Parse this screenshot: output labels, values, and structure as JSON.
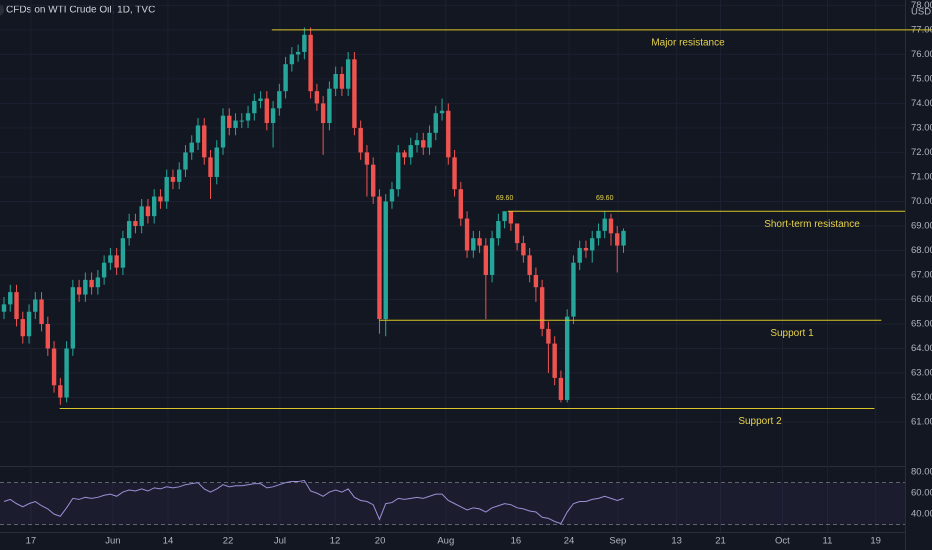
{
  "chart_data": {
    "type": "candlestick",
    "title": "CFDs on WTI Crude Oil, 1D, TVC",
    "y_unit": "USD",
    "up_color": "#26a69a",
    "down_color": "#ef5350",
    "level_color": "#d9c527",
    "open": [
      65.5,
      65.8,
      66.3,
      65.2,
      64.5,
      65.5,
      66.0,
      65.0,
      64.0,
      62.5,
      62.0,
      64.0,
      66.5,
      66.2,
      66.8,
      66.5,
      66.9,
      67.5,
      67.8,
      67.3,
      68.5,
      69.2,
      69.0,
      69.8,
      69.4,
      70.2,
      70.0,
      71.0,
      70.8,
      71.3,
      72.0,
      72.4,
      73.1,
      71.8,
      71.0,
      72.2,
      73.5,
      73.0,
      73.3,
      73.3,
      73.6,
      74.1,
      74.2,
      73.2,
      73.8,
      74.5,
      75.6,
      76.0,
      76.1,
      76.8,
      74.5,
      74.0,
      73.2,
      74.6,
      75.2,
      74.6,
      75.8,
      73.0,
      72.0,
      71.5,
      70.2,
      65.2,
      70.0,
      70.5,
      72.0,
      71.8,
      72.3,
      72.5,
      72.2,
      72.8,
      73.6,
      73.7,
      71.8,
      70.5,
      69.3,
      68.0,
      68.5,
      68.2,
      67.0,
      68.5,
      69.2,
      69.6,
      69.1,
      68.3,
      67.8,
      67.0,
      66.5,
      64.8,
      64.2,
      62.8,
      61.9,
      65.3,
      67.5,
      68.1,
      68.0,
      68.5,
      68.8,
      69.3,
      68.7,
      68.2
    ],
    "high": [
      66.1,
      66.6,
      66.6,
      65.5,
      65.8,
      66.3,
      66.3,
      65.3,
      64.3,
      62.8,
      64.3,
      66.8,
      66.8,
      67.1,
      67.1,
      67.2,
      67.8,
      68.1,
      68.1,
      68.8,
      69.5,
      69.5,
      70.1,
      70.1,
      70.5,
      70.5,
      71.3,
      71.3,
      71.6,
      72.3,
      72.7,
      73.4,
      73.4,
      72.1,
      72.5,
      73.8,
      73.8,
      73.6,
      73.6,
      73.9,
      74.4,
      74.5,
      74.5,
      74.1,
      74.8,
      75.9,
      76.3,
      76.4,
      77.1,
      77.1,
      74.8,
      74.3,
      74.9,
      75.5,
      75.5,
      76.1,
      76.1,
      73.3,
      72.3,
      71.8,
      70.5,
      70.3,
      70.8,
      72.3,
      72.1,
      72.6,
      72.8,
      72.8,
      73.1,
      73.9,
      74.2,
      74.0,
      72.1,
      70.8,
      69.6,
      68.8,
      68.8,
      68.5,
      68.8,
      69.5,
      69.6,
      69.6,
      69.1,
      68.6,
      68.1,
      67.3,
      66.8,
      65.1,
      64.5,
      63.1,
      65.6,
      67.8,
      68.4,
      68.4,
      68.8,
      69.1,
      69.6,
      69.5,
      69.0,
      68.9
    ],
    "low": [
      65.2,
      65.5,
      64.9,
      64.2,
      64.2,
      65.2,
      64.7,
      63.7,
      62.2,
      61.7,
      61.8,
      63.7,
      65.9,
      65.9,
      66.2,
      66.2,
      66.6,
      67.2,
      67.0,
      67.0,
      68.2,
      68.7,
      68.7,
      69.1,
      69.1,
      69.7,
      69.7,
      70.5,
      70.5,
      71.0,
      71.7,
      72.1,
      71.5,
      70.1,
      70.7,
      71.9,
      72.7,
      72.7,
      73.0,
      73.0,
      73.3,
      73.8,
      72.9,
      72.2,
      73.5,
      74.2,
      75.3,
      75.7,
      75.8,
      74.2,
      73.7,
      71.9,
      72.9,
      74.3,
      74.3,
      74.3,
      72.7,
      71.7,
      70.2,
      69.9,
      64.6,
      64.5,
      69.7,
      70.2,
      71.5,
      71.5,
      72.0,
      71.9,
      71.9,
      72.5,
      73.3,
      71.5,
      70.2,
      69.0,
      67.7,
      67.7,
      67.9,
      65.2,
      66.7,
      68.2,
      68.9,
      68.8,
      68.0,
      67.5,
      66.7,
      65.9,
      64.5,
      63.0,
      62.5,
      61.8,
      61.8,
      65.0,
      67.2,
      67.7,
      67.5,
      68.2,
      68.5,
      68.2,
      67.1,
      67.9
    ],
    "close": [
      65.8,
      66.3,
      65.2,
      64.5,
      65.5,
      66.0,
      65.0,
      64.0,
      62.5,
      62.0,
      64.0,
      66.5,
      66.2,
      66.8,
      66.5,
      66.9,
      67.5,
      67.8,
      67.3,
      68.5,
      69.2,
      69.0,
      69.8,
      69.4,
      70.2,
      70.0,
      71.0,
      70.8,
      71.3,
      72.0,
      72.4,
      73.1,
      71.8,
      71.0,
      72.2,
      73.5,
      73.0,
      73.3,
      73.3,
      73.6,
      74.1,
      74.2,
      73.2,
      73.8,
      74.5,
      75.6,
      76.0,
      76.1,
      76.8,
      74.5,
      74.0,
      73.2,
      74.6,
      75.2,
      74.6,
      75.8,
      73.0,
      72.0,
      71.5,
      70.2,
      65.2,
      70.0,
      70.5,
      72.0,
      71.8,
      72.3,
      72.5,
      72.2,
      72.8,
      73.6,
      73.7,
      71.8,
      70.5,
      69.3,
      68.0,
      68.5,
      68.2,
      67.0,
      68.5,
      69.2,
      69.6,
      69.1,
      68.3,
      67.8,
      67.0,
      66.5,
      64.8,
      64.2,
      62.8,
      61.9,
      65.3,
      67.5,
      68.1,
      68.0,
      68.5,
      68.8,
      69.3,
      68.7,
      68.2,
      68.8
    ],
    "ylim": [
      59.45,
      78.22
    ],
    "yticks": [
      {
        "value": 78,
        "label": "78.00"
      },
      {
        "value": 77,
        "label": "77.00"
      },
      {
        "value": 76,
        "label": "76.00"
      },
      {
        "value": 75,
        "label": "75.00"
      },
      {
        "value": 74,
        "label": "74.00"
      },
      {
        "value": 73,
        "label": "73.00"
      },
      {
        "value": 72,
        "label": "72.00"
      },
      {
        "value": 71,
        "label": "71.00"
      },
      {
        "value": 70,
        "label": "70.00"
      },
      {
        "value": 69,
        "label": "69.00"
      },
      {
        "value": 68,
        "label": "68.00"
      },
      {
        "value": 67,
        "label": "67.00"
      },
      {
        "value": 66,
        "label": "66.00"
      },
      {
        "value": 65,
        "label": "65.00"
      },
      {
        "value": 64,
        "label": "64.00"
      },
      {
        "value": 63,
        "label": "63.00"
      },
      {
        "value": 62,
        "label": "62.00"
      },
      {
        "value": 61,
        "label": "61.00"
      }
    ],
    "xlim": [
      -0.64,
      148.3
    ],
    "xticks": [
      {
        "value": 4.3,
        "label": "17"
      },
      {
        "value": 17.4,
        "label": "Jun"
      },
      {
        "value": 26.2,
        "label": "14"
      },
      {
        "value": 35.8,
        "label": "22"
      },
      {
        "value": 44.1,
        "label": "Jul"
      },
      {
        "value": 52.9,
        "label": "12"
      },
      {
        "value": 60.1,
        "label": "20"
      },
      {
        "value": 70.6,
        "label": "Aug"
      },
      {
        "value": 81.8,
        "label": "16"
      },
      {
        "value": 90.3,
        "label": "24"
      },
      {
        "value": 98.1,
        "label": "Sep"
      },
      {
        "value": 107.5,
        "label": "13"
      },
      {
        "value": 114.5,
        "label": "21"
      },
      {
        "value": 124.4,
        "label": "Oct"
      },
      {
        "value": 131.6,
        "label": "11"
      },
      {
        "value": 139.3,
        "label": "19"
      }
    ],
    "grid": true,
    "levels": [
      {
        "label": "Major resistance",
        "value": 77.0,
        "x": [
          42.8,
          148.3
        ]
      },
      {
        "label": "Short-term resistance",
        "value": 69.6,
        "x": [
          80.5,
          144.0
        ]
      },
      {
        "label": "Support 1",
        "value": 65.15,
        "x": [
          60.0,
          140.2
        ]
      },
      {
        "label": "Support 2",
        "value": 61.55,
        "x": [
          8.9,
          139.1
        ]
      }
    ],
    "annotations": [
      {
        "label": "69.60",
        "value": 69.6,
        "x": 80
      },
      {
        "label": "69.60",
        "value": 69.6,
        "x": 96
      }
    ],
    "indicator": {
      "color": "#9c8fd6",
      "values": [
        52,
        54,
        50,
        47,
        50,
        52,
        48,
        45,
        40,
        38,
        46,
        55,
        54,
        56,
        55,
        56,
        58,
        59,
        57,
        61,
        63,
        62,
        64,
        62,
        65,
        64,
        66,
        65,
        66,
        68,
        69,
        70,
        64,
        61,
        64,
        68,
        66,
        67,
        67,
        68,
        69,
        69,
        65,
        66,
        68,
        70,
        71,
        71,
        72,
        62,
        60,
        57,
        61,
        63,
        61,
        64,
        56,
        53,
        52,
        49,
        35,
        50,
        51,
        55,
        54,
        55,
        56,
        55,
        57,
        59,
        59,
        53,
        50,
        47,
        44,
        46,
        45,
        42,
        46,
        48,
        50,
        49,
        46,
        45,
        43,
        42,
        37,
        36,
        33,
        31,
        42,
        50,
        52,
        52,
        54,
        55,
        57,
        55,
        53,
        55
      ],
      "ylim": [
        23,
        82
      ],
      "yticks": [
        {
          "value": 80,
          "label": "80.00"
        },
        {
          "value": 60,
          "label": "60.00"
        },
        {
          "value": 40,
          "label": "40.00"
        }
      ],
      "bands": [
        70,
        30
      ]
    }
  }
}
